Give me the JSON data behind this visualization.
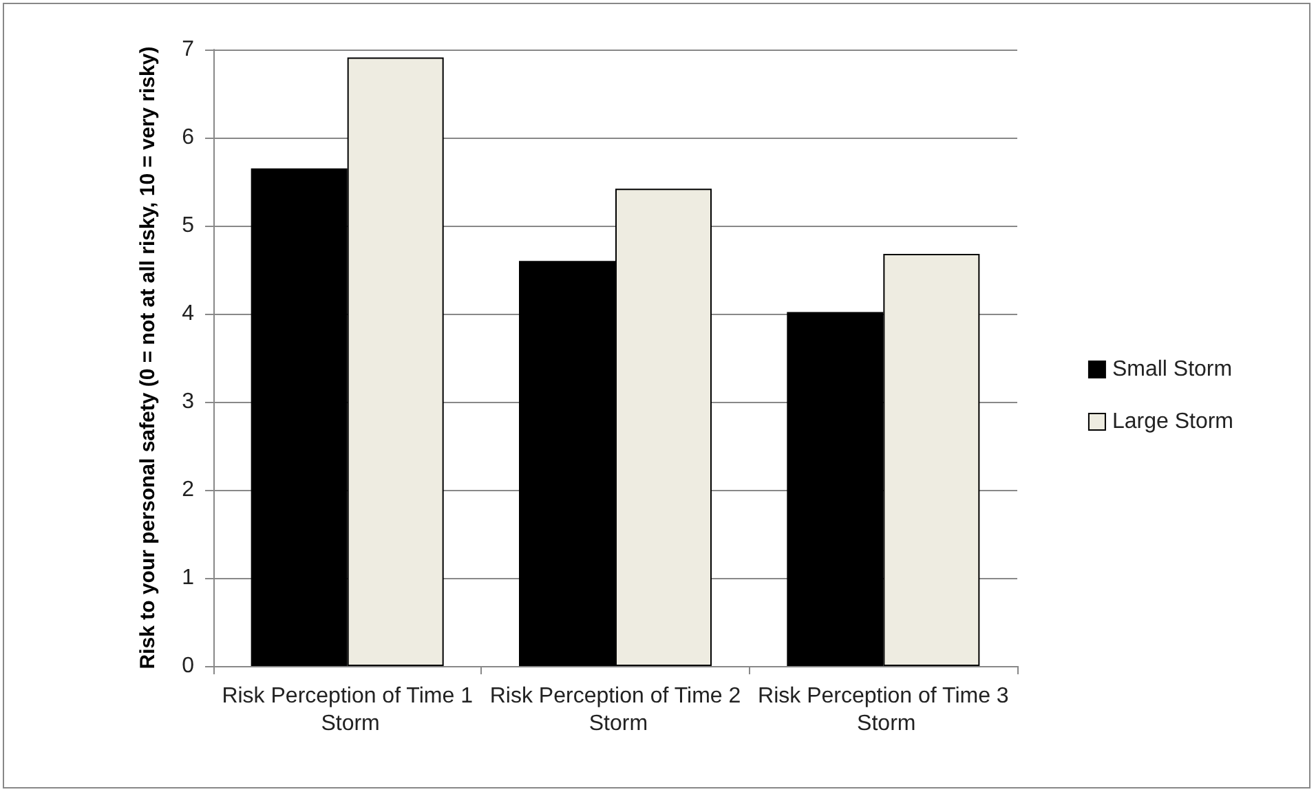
{
  "chart_data": {
    "type": "bar",
    "ylabel": "Risk to your personal safety (0 = not at all risky, 10 = very risky)",
    "categories": [
      "Risk Perception of Time 1 Storm",
      "Risk Perception of Time 2 Storm",
      "Risk Perception of Time 3 Storm"
    ],
    "series": [
      {
        "name": "Small Storm",
        "color": "#000000",
        "values": [
          5.65,
          4.6,
          4.02
        ]
      },
      {
        "name": "Large Storm",
        "color": "#eeece1",
        "values": [
          6.91,
          5.42,
          4.68
        ]
      }
    ],
    "ylim": [
      0,
      7
    ],
    "yticks": [
      0,
      1,
      2,
      3,
      4,
      5,
      6,
      7
    ],
    "grid": "y",
    "legend": "right"
  }
}
